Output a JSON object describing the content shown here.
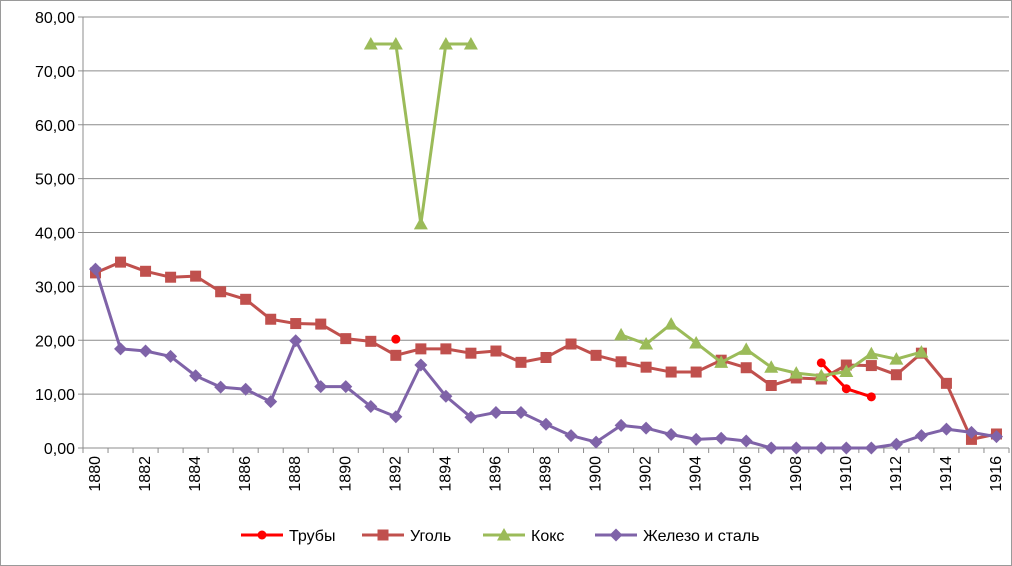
{
  "chart_data": {
    "type": "line",
    "title": "",
    "xlabel": "",
    "ylabel": "",
    "x": [
      1880,
      1881,
      1882,
      1883,
      1884,
      1885,
      1886,
      1887,
      1888,
      1889,
      1890,
      1891,
      1892,
      1893,
      1894,
      1895,
      1896,
      1897,
      1898,
      1899,
      1900,
      1901,
      1902,
      1903,
      1904,
      1905,
      1906,
      1907,
      1908,
      1909,
      1910,
      1911,
      1912,
      1913,
      1914,
      1915,
      1916
    ],
    "ylim": [
      0,
      80
    ],
    "y_ticks": [
      "0,00",
      "10,00",
      "20,00",
      "30,00",
      "40,00",
      "50,00",
      "60,00",
      "70,00",
      "80,00"
    ],
    "x_tick_labels": [
      "1880",
      "1882",
      "1884",
      "1886",
      "1888",
      "1890",
      "1892",
      "1894",
      "1896",
      "1898",
      "1900",
      "1902",
      "1904",
      "1906",
      "1908",
      "1910",
      "1912",
      "1914",
      "1916"
    ],
    "grid": "horizontal",
    "legend_position": "bottom",
    "series": [
      {
        "name": "Трубы",
        "color": "#ff0000",
        "marker": "circle",
        "values": [
          null,
          null,
          null,
          null,
          null,
          null,
          null,
          null,
          null,
          null,
          null,
          null,
          20.2,
          null,
          null,
          null,
          null,
          null,
          null,
          null,
          null,
          null,
          null,
          null,
          null,
          null,
          null,
          null,
          null,
          15.8,
          11.0,
          9.5,
          null,
          null,
          null,
          null,
          null
        ]
      },
      {
        "name": "Уголь",
        "color": "#c0504d",
        "marker": "square",
        "values": [
          32.5,
          34.5,
          32.8,
          31.7,
          31.9,
          29.0,
          27.6,
          23.9,
          23.1,
          23.0,
          20.3,
          19.8,
          17.2,
          18.4,
          18.4,
          17.6,
          18.0,
          15.9,
          16.8,
          19.3,
          17.2,
          16.0,
          15.0,
          14.1,
          14.1,
          16.3,
          14.9,
          11.6,
          13.0,
          12.8,
          15.4,
          15.3,
          13.6,
          17.6,
          12.0,
          1.6,
          2.6
        ]
      },
      {
        "name": "Кокс",
        "color": "#9bbb59",
        "marker": "triangle",
        "values": [
          null,
          null,
          null,
          null,
          null,
          null,
          null,
          null,
          null,
          null,
          null,
          75.0,
          75.0,
          41.6,
          75.0,
          75.0,
          null,
          null,
          null,
          null,
          null,
          21.0,
          19.3,
          23.0,
          19.5,
          15.9,
          18.3,
          15.0,
          13.9,
          13.4,
          14.2,
          17.5,
          16.5,
          17.8,
          null,
          null,
          null
        ]
      },
      {
        "name": "Железо и сталь",
        "color": "#7f63a8",
        "marker": "diamond",
        "values": [
          33.2,
          18.4,
          18.0,
          17.0,
          13.4,
          11.3,
          10.9,
          8.6,
          19.9,
          11.4,
          11.4,
          7.7,
          5.8,
          15.4,
          9.6,
          5.7,
          6.6,
          6.6,
          4.4,
          2.3,
          1.1,
          4.2,
          3.7,
          2.5,
          1.6,
          1.8,
          1.3,
          0.0,
          0.0,
          0.0,
          0.0,
          0.0,
          0.7,
          2.3,
          3.5,
          2.9,
          2.1
        ]
      }
    ]
  }
}
